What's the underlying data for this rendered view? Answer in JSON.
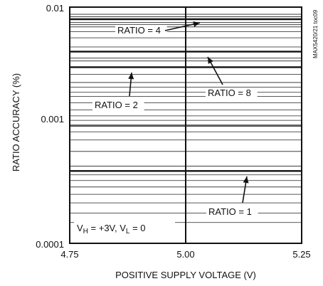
{
  "chart_data": {
    "type": "line",
    "xlabel": "POSITIVE SUPPLY VOLTAGE (V)",
    "ylabel": "RATIO ACCURACY (%)",
    "xlim": [
      4.75,
      5.25
    ],
    "ylim": [
      0.0001,
      0.01
    ],
    "yscale": "log",
    "grid": true,
    "x_ticks": [
      "4.75",
      "5.00",
      "5.25"
    ],
    "y_ticks": [
      "0.0001",
      "0.001",
      "0.01"
    ],
    "side_code": "MAX5420/21 toc09",
    "conditions": {
      "prefix": "V",
      "h_sub": "H",
      "h_value": " = +3V, V",
      "l_sub": "L",
      "l_value": " = 0"
    },
    "series": [
      {
        "name": "RATIO = 1",
        "x": [
          4.75,
          5.25
        ],
        "y": [
          0.00041,
          0.00041
        ]
      },
      {
        "name": "RATIO = 2",
        "x": [
          4.75,
          5.25
        ],
        "y": [
          0.0031,
          0.0031
        ]
      },
      {
        "name": "RATIO = 4",
        "x": [
          4.75,
          5.25
        ],
        "y": [
          0.0079,
          0.0079
        ]
      },
      {
        "name": "RATIO = 8",
        "x": [
          4.75,
          5.25
        ],
        "y": [
          0.0042,
          0.0042
        ]
      }
    ],
    "minor_lines": [
      0.00015,
      0.00018,
      0.00022,
      0.00026,
      0.0003,
      0.00034,
      0.00038,
      0.00045,
      0.0006,
      0.00075,
      0.00088,
      0.00098,
      0.0011,
      0.0012,
      0.00135,
      0.00155,
      0.00175,
      0.0019,
      0.0021,
      0.0023,
      0.0027,
      0.0035,
      0.0037,
      0.0046,
      0.0055,
      0.0062,
      0.0068,
      0.0071,
      0.0074,
      0.0083,
      0.0087
    ],
    "annotations": [
      {
        "series": "RATIO = 4",
        "text": "RATIO = 4"
      },
      {
        "series": "RATIO = 2",
        "text": "RATIO = 2"
      },
      {
        "series": "RATIO = 8",
        "text": "RATIO = 8"
      },
      {
        "series": "RATIO = 1",
        "text": "RATIO = 1"
      }
    ]
  }
}
